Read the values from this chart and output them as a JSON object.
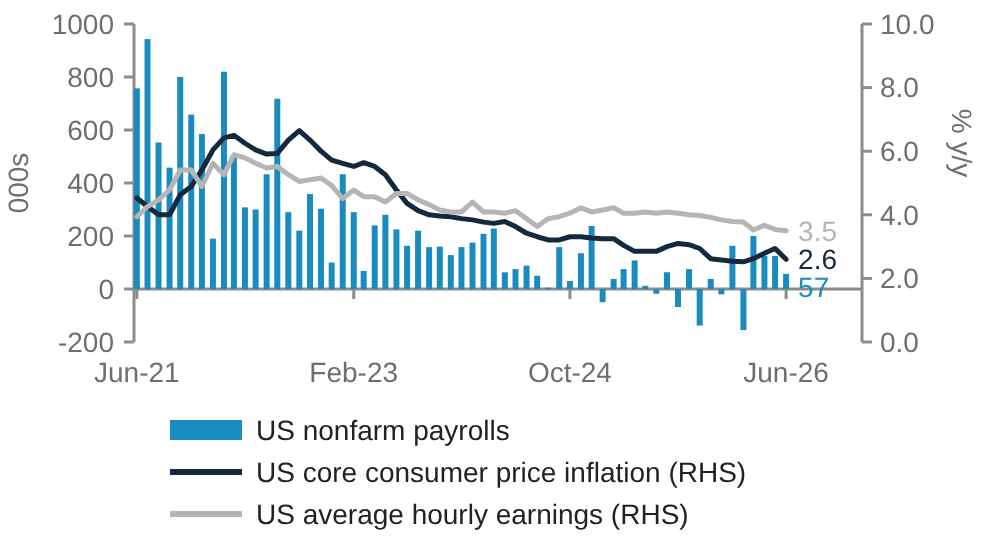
{
  "chart_data": {
    "type": "bar",
    "ylabel": "000s",
    "y2label": "% y/y",
    "legend": "bottom",
    "x": [
      "2021-06",
      "2021-07",
      "2021-08",
      "2021-09",
      "2021-10",
      "2021-11",
      "2021-12",
      "2022-01",
      "2022-02",
      "2022-03",
      "2022-04",
      "2022-05",
      "2022-06",
      "2022-07",
      "2022-08",
      "2022-09",
      "2022-10",
      "2022-11",
      "2022-12",
      "2023-01",
      "2023-02",
      "2023-03",
      "2023-04",
      "2023-05",
      "2023-06",
      "2023-07",
      "2023-08",
      "2023-09",
      "2023-10",
      "2023-11",
      "2023-12",
      "2024-01",
      "2024-02",
      "2024-03",
      "2024-04",
      "2024-05",
      "2024-06",
      "2024-07",
      "2024-08",
      "2024-09",
      "2024-10",
      "2024-11",
      "2024-12",
      "2025-01",
      "2025-02",
      "2025-03",
      "2025-04",
      "2025-05",
      "2025-06",
      "2025-07",
      "2025-08",
      "2025-09",
      "2025-10",
      "2025-11",
      "2025-12",
      "2026-01",
      "2026-02",
      "2026-03",
      "2026-04",
      "2026-05",
      "2026-06"
    ],
    "xlim": [
      "2021-05-24",
      "2026-06-12"
    ],
    "xticks": [
      {
        "value": "2021-06",
        "label": "Jun-21"
      },
      {
        "value": "2023-02",
        "label": "Feb-23"
      },
      {
        "value": "2024-10",
        "label": "Oct-24"
      },
      {
        "value": "2026-06",
        "label": "Jun-26"
      }
    ],
    "ylim": [
      -200,
      1000
    ],
    "yticks": [
      -200,
      0,
      200,
      400,
      600,
      800,
      1000
    ],
    "y2lim": [
      0,
      10
    ],
    "y2ticks": [
      {
        "value": 0,
        "label": "0.0"
      },
      {
        "value": 2,
        "label": "2.0"
      },
      {
        "value": 4,
        "label": "4.0"
      },
      {
        "value": 6,
        "label": "6.0"
      },
      {
        "value": 8,
        "label": "8.0"
      },
      {
        "value": 10,
        "label": "10.0"
      }
    ],
    "series": [
      {
        "name": "US nonfarm payrolls",
        "color": "#1a8bbf",
        "values": [
          757,
          943,
          553,
          458,
          800,
          658,
          585,
          190,
          820,
          500,
          308,
          300,
          433,
          718,
          290,
          220,
          358,
          303,
          100,
          433,
          290,
          68,
          240,
          280,
          225,
          163,
          220,
          158,
          160,
          128,
          158,
          175,
          208,
          228,
          63,
          75,
          88,
          50,
          5,
          158,
          30,
          135,
          238,
          -50,
          38,
          75,
          108,
          12,
          -18,
          63,
          -68,
          75,
          -138,
          38,
          -20,
          163,
          -155,
          200,
          125,
          125,
          57
        ],
        "value_labels": [
          null,
          null,
          null,
          null,
          null,
          null,
          null,
          null,
          null,
          null,
          null,
          null,
          null,
          null,
          null,
          null,
          null,
          null,
          null,
          null,
          null,
          null,
          null,
          null,
          null,
          null,
          null,
          null,
          null,
          null,
          null,
          null,
          null,
          null,
          null,
          null,
          null,
          null,
          null,
          null,
          null,
          null,
          null,
          null,
          null,
          null,
          null,
          null,
          null,
          null,
          null,
          null,
          null,
          null,
          null,
          null,
          null,
          null,
          null,
          null,
          "57"
        ]
      },
      {
        "name": "US core consumer price inflation (RHS)",
        "type": "line",
        "axis": "y2",
        "color": "#15293d",
        "values": [
          4.53,
          4.26,
          4.0,
          4.0,
          4.63,
          4.89,
          5.41,
          6.04,
          6.42,
          6.5,
          6.25,
          6.04,
          5.91,
          5.93,
          6.35,
          6.65,
          6.35,
          6.0,
          5.72,
          5.62,
          5.52,
          5.64,
          5.52,
          5.26,
          4.78,
          4.36,
          4.13,
          4.0,
          3.96,
          3.94,
          3.88,
          3.84,
          3.77,
          3.73,
          3.79,
          3.63,
          3.42,
          3.31,
          3.21,
          3.21,
          3.31,
          3.31,
          3.27,
          3.25,
          3.25,
          3.04,
          2.85,
          2.85,
          2.85,
          3.0,
          3.1,
          3.06,
          2.94,
          2.62,
          2.58,
          2.54,
          2.52,
          2.62,
          2.79,
          2.94,
          2.6
        ],
        "value_labels": [
          null,
          null,
          null,
          null,
          null,
          null,
          null,
          null,
          null,
          null,
          null,
          null,
          null,
          null,
          null,
          null,
          null,
          null,
          null,
          null,
          null,
          null,
          null,
          null,
          null,
          null,
          null,
          null,
          null,
          null,
          null,
          null,
          null,
          null,
          null,
          null,
          null,
          null,
          null,
          null,
          null,
          null,
          null,
          null,
          null,
          null,
          null,
          null,
          null,
          null,
          null,
          null,
          null,
          null,
          null,
          null,
          null,
          null,
          null,
          null,
          "2.6"
        ]
      },
      {
        "name": "US average hourly earnings (RHS)",
        "type": "line",
        "axis": "y2",
        "color": "#b5b5b5",
        "values": [
          3.94,
          4.26,
          4.47,
          4.78,
          5.41,
          5.41,
          4.89,
          5.62,
          5.26,
          5.89,
          5.79,
          5.62,
          5.47,
          5.52,
          5.26,
          5.05,
          5.1,
          5.16,
          4.92,
          4.51,
          4.78,
          4.57,
          4.57,
          4.4,
          4.67,
          4.67,
          4.47,
          4.32,
          4.15,
          4.09,
          4.09,
          4.4,
          4.09,
          4.09,
          4.05,
          4.13,
          3.88,
          3.63,
          3.88,
          3.94,
          4.05,
          4.22,
          4.09,
          4.15,
          4.22,
          4.05,
          4.05,
          4.09,
          4.05,
          4.09,
          4.05,
          4.0,
          3.98,
          3.92,
          3.84,
          3.79,
          3.77,
          3.52,
          3.67,
          3.54,
          3.5
        ],
        "value_labels": [
          null,
          null,
          null,
          null,
          null,
          null,
          null,
          null,
          null,
          null,
          null,
          null,
          null,
          null,
          null,
          null,
          null,
          null,
          null,
          null,
          null,
          null,
          null,
          null,
          null,
          null,
          null,
          null,
          null,
          null,
          null,
          null,
          null,
          null,
          null,
          null,
          null,
          null,
          null,
          null,
          null,
          null,
          null,
          null,
          null,
          null,
          null,
          null,
          null,
          null,
          null,
          null,
          null,
          null,
          null,
          null,
          null,
          null,
          null,
          null,
          "3.5"
        ]
      }
    ]
  }
}
